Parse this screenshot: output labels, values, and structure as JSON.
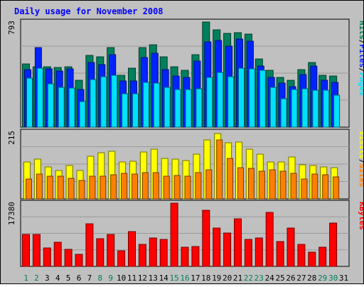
{
  "chart_data": {
    "type": "bar",
    "title": "Daily usage for November 2008",
    "days": [
      "1",
      "2",
      "3",
      "4",
      "5",
      "6",
      "7",
      "8",
      "9",
      "10",
      "11",
      "12",
      "13",
      "14",
      "15",
      "16",
      "17",
      "18",
      "19",
      "20",
      "21",
      "22",
      "23",
      "24",
      "25",
      "26",
      "27",
      "28",
      "29",
      "30",
      "31"
    ],
    "weekend_days": [
      "1",
      "2",
      "8",
      "9",
      "15",
      "16",
      "22",
      "23",
      "29",
      "30"
    ],
    "colors": {
      "title": "#0000ff",
      "hits": "#00805c",
      "files": "#0024ff",
      "pages": "#00e0ff",
      "visits": "#ffff00",
      "sites": "#ff8000",
      "kbytes": "#ff0000",
      "weekend_label": "#00805c",
      "weekday_label": "#000000",
      "slash": "#000000"
    },
    "panels": [
      {
        "name": "hits-files-pages",
        "max_label": "793",
        "ylim": [
          0,
          793
        ],
        "legend": [
          {
            "text": "Hits",
            "color_key": "hits"
          },
          {
            "text": "Files",
            "color_key": "files"
          },
          {
            "text": "Pages",
            "color_key": "pages"
          }
        ],
        "series": [
          {
            "name": "Hits",
            "color_key": "hits",
            "values": [
              478,
              457,
              457,
              452,
              454,
              356,
              542,
              528,
              601,
              389,
              444,
              602,
              619,
              529,
              453,
              427,
              549,
              793,
              733,
              708,
              710,
              704,
              512,
              428,
              373,
              354,
              434,
              488,
              391,
              386,
              0
            ]
          },
          {
            "name": "Files",
            "color_key": "files",
            "values": [
              435,
              598,
              439,
              424,
              440,
              282,
              488,
              471,
              548,
              346,
              350,
              523,
              558,
              434,
              388,
              373,
              498,
              644,
              652,
              611,
              662,
              648,
              460,
              376,
              331,
              305,
              394,
              461,
              355,
              338,
              0
            ]
          },
          {
            "name": "Pages",
            "color_key": "pages",
            "values": [
              372,
              447,
              326,
              300,
              297,
              192,
              360,
              383,
              391,
              254,
              252,
              337,
              332,
              301,
              286,
              286,
              288,
              376,
              413,
              380,
              446,
              438,
              426,
              299,
              214,
              285,
              287,
              280,
              280,
              240,
              0
            ]
          }
        ]
      },
      {
        "name": "visits-sites",
        "max_label": "215",
        "ylim": [
          0,
          215
        ],
        "legend": [
          {
            "text": "Visits",
            "color_key": "visits"
          },
          {
            "text": "Sites",
            "color_key": "sites"
          }
        ],
        "series": [
          {
            "name": "Visits",
            "color_key": "visits",
            "values": [
              118,
              127,
              103,
              92,
              108,
              91,
              138,
              148,
              153,
              118,
              121,
              151,
              161,
              131,
              128,
              124,
              145,
              190,
              211,
              181,
              182,
              160,
              145,
              120,
              120,
              135,
              110,
              108,
              102,
              100,
              0
            ]
          },
          {
            "name": "Sites",
            "color_key": "sites",
            "values": [
              65,
              80,
              73,
              74,
              67,
              60,
              74,
              73,
              77,
              82,
              79,
              84,
              84,
              73,
              76,
              74,
              84,
              93,
              190,
              131,
              100,
              98,
              89,
              94,
              89,
              83,
              65,
              79,
              77,
              71,
              0
            ]
          }
        ]
      },
      {
        "name": "kbytes",
        "max_label": "17380",
        "ylim": [
          0,
          17380
        ],
        "legend": [
          {
            "text": "KBytes",
            "color_key": "kbytes"
          }
        ],
        "series": [
          {
            "name": "KBytes",
            "color_key": "kbytes",
            "values": [
              8868,
              8868,
              5128,
              6568,
              4648,
              3408,
              11688,
              7688,
              8868,
              4288,
              9488,
              6088,
              7748,
              7448,
              17380,
              5368,
              5548,
              15448,
              10528,
              9088,
              13088,
              7448,
              7748,
              14848,
              6808,
              10528,
              5968,
              3888,
              5268,
              11888,
              0
            ]
          }
        ]
      }
    ]
  }
}
